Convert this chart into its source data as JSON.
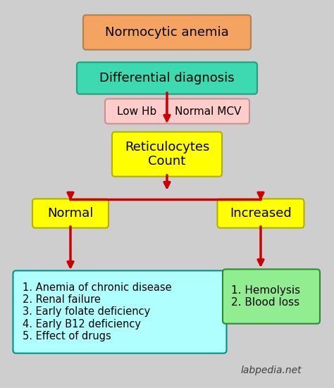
{
  "bg_color": "#cecece",
  "title": "Normocytic anemia",
  "title_box_color": "#f4a460",
  "title_box_edge": "#b08050",
  "diff_diag_text": "Differential diagnosis",
  "diff_diag_color": "#3dd9b0",
  "diff_diag_edge": "#20a080",
  "low_hb_text": "Low Hb",
  "low_hb_color": "#ffcccc",
  "low_hb_edge": "#cc9090",
  "normal_mcv_text": "Normal MCV",
  "normal_mcv_color": "#ffcccc",
  "normal_mcv_edge": "#cc9090",
  "reticulocytes_text": "Reticulocytes\nCount",
  "reticulocytes_color": "#ffff00",
  "reticulocytes_edge": "#b0b000",
  "normal_text": "Normal",
  "normal_color": "#ffff00",
  "normal_edge": "#b0b000",
  "increased_text": "Increased",
  "increased_color": "#ffff00",
  "increased_edge": "#b0b000",
  "left_box_text": "1. Anemia of chronic disease\n2. Renal failure\n3. Early folate deficiency\n4. Early B12 deficiency\n5. Effect of drugs",
  "left_box_color": "#b0ffff",
  "left_box_edge": "#009090",
  "right_box_text": "1. Hemolysis\n2. Blood loss",
  "right_box_color": "#90ee90",
  "right_box_edge": "#308830",
  "arrow_color": "#cc0000",
  "watermark": "labpedia.net",
  "watermark_color": "#404040",
  "figw": 4.74,
  "figh": 5.51,
  "dpi": 100
}
